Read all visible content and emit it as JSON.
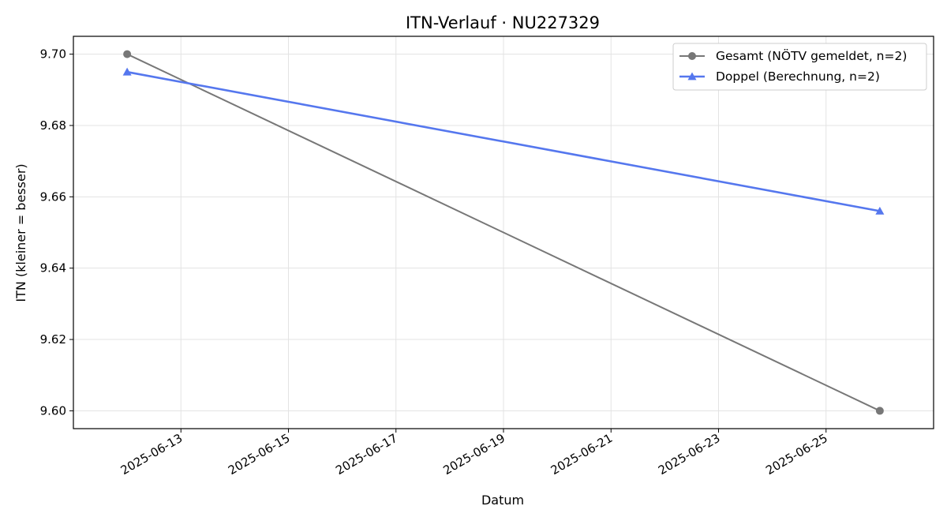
{
  "chart_data": {
    "type": "line",
    "title": "ITN-Verlauf · NU227329",
    "xlabel": "Datum",
    "ylabel": "ITN  (kleiner = besser)",
    "xlim": [
      "2025-06-11",
      "2025-06-27"
    ],
    "ylim": [
      9.595,
      9.705
    ],
    "x_ticks": [
      "2025-06-13",
      "2025-06-15",
      "2025-06-17",
      "2025-06-19",
      "2025-06-21",
      "2025-06-23",
      "2025-06-25"
    ],
    "y_ticks": [
      "9.60",
      "9.62",
      "9.64",
      "9.66",
      "9.68",
      "9.70"
    ],
    "grid": true,
    "legend_position": "top-right",
    "series": [
      {
        "name": "Gesamt (NÖTV gemeldet, n=2)",
        "color": "#777777",
        "marker": "circle",
        "points": [
          {
            "x": "2025-06-12",
            "y": 9.7
          },
          {
            "x": "2025-06-26",
            "y": 9.6
          }
        ]
      },
      {
        "name": "Doppel (Berechnung, n=2)",
        "color": "#5577ee",
        "marker": "triangle",
        "points": [
          {
            "x": "2025-06-12",
            "y": 9.695
          },
          {
            "x": "2025-06-26",
            "y": 9.656
          }
        ]
      }
    ]
  }
}
